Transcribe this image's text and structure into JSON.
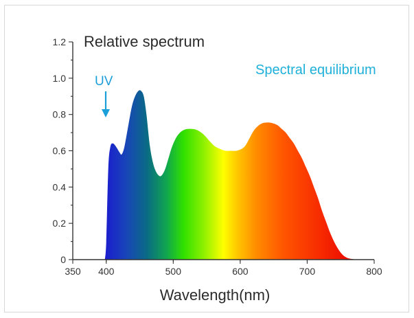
{
  "chart_data": {
    "type": "area",
    "title": "Relative spectrum",
    "xlabel": "Wavelength(nm)",
    "ylabel": "",
    "xlim": [
      350,
      800
    ],
    "ylim": [
      0,
      1.2
    ],
    "x_ticks": [
      "350",
      "400",
      "500",
      "600",
      "700",
      "800"
    ],
    "y_ticks": [
      "0",
      "0.2",
      "0.4",
      "0.6",
      "0.8",
      "1.0",
      "1.2"
    ],
    "x": [
      398,
      400,
      403,
      406,
      410,
      415,
      420,
      423,
      427,
      432,
      438,
      443,
      448,
      452,
      456,
      460,
      465,
      470,
      475,
      480,
      484,
      488,
      493,
      498,
      504,
      510,
      516,
      522,
      528,
      535,
      542,
      548,
      555,
      562,
      570,
      578,
      586,
      594,
      602,
      608,
      614,
      620,
      626,
      632,
      638,
      644,
      650,
      656,
      662,
      668,
      674,
      680,
      686,
      692,
      698,
      704,
      710,
      716,
      722,
      728,
      734,
      740,
      746,
      752,
      758,
      764,
      770,
      776,
      780
    ],
    "values": [
      0.0,
      0.1,
      0.5,
      0.62,
      0.64,
      0.62,
      0.59,
      0.58,
      0.62,
      0.72,
      0.84,
      0.9,
      0.93,
      0.93,
      0.9,
      0.8,
      0.63,
      0.53,
      0.48,
      0.46,
      0.47,
      0.5,
      0.56,
      0.62,
      0.67,
      0.7,
      0.715,
      0.72,
      0.72,
      0.715,
      0.7,
      0.68,
      0.65,
      0.625,
      0.61,
      0.6,
      0.6,
      0.6,
      0.61,
      0.63,
      0.67,
      0.71,
      0.735,
      0.75,
      0.755,
      0.755,
      0.75,
      0.74,
      0.72,
      0.7,
      0.67,
      0.64,
      0.6,
      0.56,
      0.51,
      0.46,
      0.4,
      0.34,
      0.27,
      0.21,
      0.15,
      0.1,
      0.06,
      0.03,
      0.013,
      0.005,
      0.002,
      0.0,
      0.0
    ],
    "grid": false,
    "annotations": [
      {
        "text": "UV",
        "x": 403,
        "y": 0.86,
        "color": "#1a9fd9"
      },
      {
        "text": "Spectral equilibrium",
        "color": "#1fb0d9",
        "position": "top-right"
      }
    ],
    "gradient": [
      {
        "nm": 398,
        "color": "#1c1ccf"
      },
      {
        "nm": 430,
        "color": "#1845b8"
      },
      {
        "nm": 460,
        "color": "#0a6a86"
      },
      {
        "nm": 490,
        "color": "#10a64f"
      },
      {
        "nm": 515,
        "color": "#2fe000"
      },
      {
        "nm": 545,
        "color": "#8cf000"
      },
      {
        "nm": 575,
        "color": "#ffff00"
      },
      {
        "nm": 595,
        "color": "#ffc800"
      },
      {
        "nm": 625,
        "color": "#ff8a00"
      },
      {
        "nm": 665,
        "color": "#ff5500"
      },
      {
        "nm": 720,
        "color": "#f72a00"
      },
      {
        "nm": 780,
        "color": "#e60000"
      }
    ]
  }
}
